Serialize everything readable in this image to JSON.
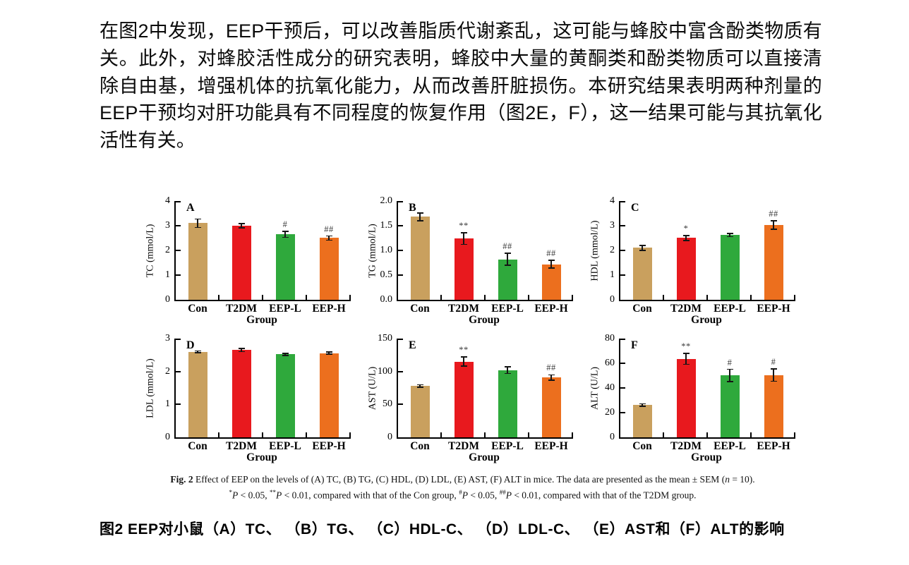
{
  "paragraph": {
    "text": "在图2中发现，EEP干预后，可以改善脂质代谢紊乱，这可能与蜂胶中富含酚类物质有关。此外，对蜂胶活性成分的研究表明，蜂胶中大量的黄酮类和酚类物质可以直接清除自由基，增强机体的抗氧化能力，从而改善肝脏损伤。本研究结果表明两种剂量的EEP干预均对肝功能具有不同程度的恢复作用（图2E，F），这一结果可能与其抗氧化活性有关。"
  },
  "colors": {
    "bars": [
      "#C9A05E",
      "#E8191E",
      "#2FA93C",
      "#EC6F1E"
    ],
    "axis": "#000000",
    "error_bar": "#151515",
    "sig_text": "#3a3a3a"
  },
  "chart_data": [
    {
      "panel": "A",
      "type": "bar",
      "ylabel": "TC (mmol/L)",
      "xlabel": "Group",
      "categories": [
        "Con",
        "T2DM",
        "EEP-L",
        "EEP-H"
      ],
      "values": [
        3.1,
        3.0,
        2.65,
        2.5
      ],
      "errors": [
        0.17,
        0.08,
        0.12,
        0.08
      ],
      "sig": [
        "",
        "",
        "#",
        "##"
      ],
      "ylim": [
        0,
        4
      ],
      "ytick_labels": [
        "0",
        "1",
        "2",
        "3",
        "4"
      ],
      "grid": false,
      "legend": "none"
    },
    {
      "panel": "B",
      "type": "bar",
      "ylabel": "TG (mmol/L)",
      "xlabel": "Group",
      "categories": [
        "Con",
        "T2DM",
        "EEP-L",
        "EEP-H"
      ],
      "values": [
        1.68,
        1.24,
        0.82,
        0.72
      ],
      "errors": [
        0.08,
        0.12,
        0.12,
        0.08
      ],
      "sig": [
        "",
        "**",
        "##",
        "##"
      ],
      "ylim": [
        0,
        2
      ],
      "ytick_labels": [
        "0.0",
        "0.5",
        "1.0",
        "1.5",
        "2.0"
      ],
      "grid": false,
      "legend": "none"
    },
    {
      "panel": "C",
      "type": "bar",
      "ylabel": "HDL (mmol/L)",
      "xlabel": "Group",
      "categories": [
        "Con",
        "T2DM",
        "EEP-L",
        "EEP-H"
      ],
      "values": [
        2.1,
        2.5,
        2.62,
        3.03
      ],
      "errors": [
        0.1,
        0.1,
        0.07,
        0.17
      ],
      "sig": [
        "",
        "*",
        "",
        "##"
      ],
      "ylim": [
        0,
        4
      ],
      "ytick_labels": [
        "0",
        "1",
        "2",
        "3",
        "4"
      ],
      "grid": false,
      "legend": "none"
    },
    {
      "panel": "D",
      "type": "bar",
      "ylabel": "LDL (mmol/L)",
      "xlabel": "Group",
      "categories": [
        "Con",
        "T2DM",
        "EEP-L",
        "EEP-H"
      ],
      "values": [
        2.6,
        2.65,
        2.52,
        2.56
      ],
      "errors": [
        0.03,
        0.05,
        0.03,
        0.03
      ],
      "sig": [
        "",
        "",
        "",
        ""
      ],
      "ylim": [
        0,
        3
      ],
      "ytick_labels": [
        "0",
        "1",
        "2",
        "3"
      ],
      "grid": false,
      "legend": "none"
    },
    {
      "panel": "E",
      "type": "bar",
      "ylabel": "AST (U/L)",
      "xlabel": "Group",
      "categories": [
        "Con",
        "T2DM",
        "EEP-L",
        "EEP-H"
      ],
      "values": [
        78,
        115,
        102,
        91
      ],
      "errors": [
        2,
        7,
        5,
        4
      ],
      "sig": [
        "",
        "**",
        "",
        "##"
      ],
      "ylim": [
        0,
        150
      ],
      "ytick_labels": [
        "0",
        "50",
        "100",
        "150"
      ],
      "grid": false,
      "legend": "none"
    },
    {
      "panel": "F",
      "type": "bar",
      "ylabel": "ALT (U/L)",
      "xlabel": "Group",
      "categories": [
        "Con",
        "T2DM",
        "EEP-L",
        "EEP-H"
      ],
      "values": [
        26,
        63.5,
        50,
        50.5
      ],
      "errors": [
        1,
        4.5,
        5,
        5
      ],
      "sig": [
        "",
        "**",
        "#",
        "#"
      ],
      "ylim": [
        0,
        80
      ],
      "ytick_labels": [
        "0",
        "20",
        "40",
        "60",
        "80"
      ],
      "grid": false,
      "legend": "none"
    }
  ],
  "figure": {
    "caption_en": {
      "line1": [
        {
          "text": "Fig. 2",
          "bold": true
        },
        {
          "text": "   Effect of EEP on the levels of (A) TC, (B) TG, (C) HDL, (D) LDL, (E) AST, (F) ALT in mice. The data are presented as the mean ± SEM ("
        },
        {
          "text": "n",
          "italic": true
        },
        {
          "text": " = 10)."
        }
      ],
      "line2": [
        {
          "text": "*",
          "sup": true
        },
        {
          "text": "P",
          "italic": true
        },
        {
          "text": " < 0.05, "
        },
        {
          "text": "**",
          "sup": true
        },
        {
          "text": "P",
          "italic": true
        },
        {
          "text": " < 0.01, compared with that of the Con group, "
        },
        {
          "text": "#",
          "sup": true
        },
        {
          "text": "P",
          "italic": true
        },
        {
          "text": " < 0.05, "
        },
        {
          "text": "##",
          "sup": true
        },
        {
          "text": "P",
          "italic": true
        },
        {
          "text": " < 0.01, compared with that of the T2DM group."
        }
      ]
    },
    "caption_cn": "图2 EEP对小鼠（A）TC、 （B）TG、 （C）HDL-C、 （D）LDL-C、 （E）AST和（F）ALT的影响"
  }
}
